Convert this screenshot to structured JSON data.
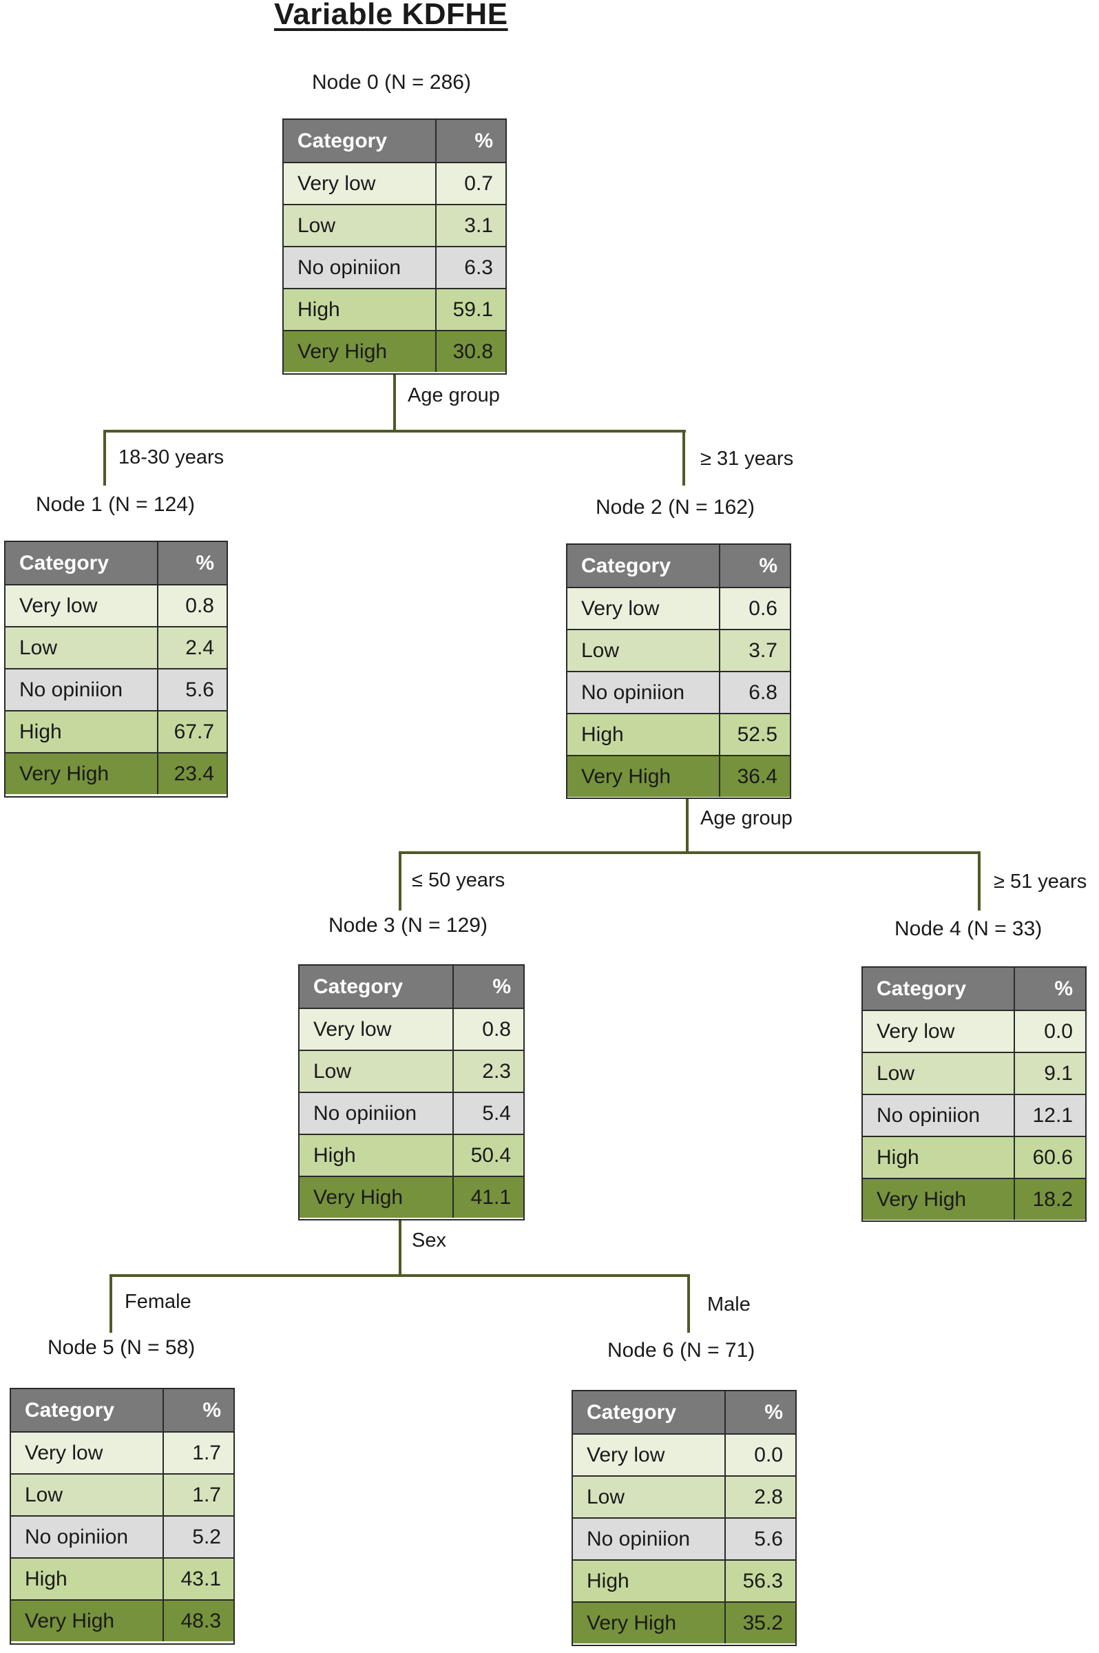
{
  "title": "Variable KDFHE",
  "colors": {
    "header": "#7a7a7a",
    "very_low": "#ebf0dd",
    "low": "#d6e2bc",
    "no_opinion": "#dcdcdc",
    "high": "#c5d99e",
    "very_high": "#76923c",
    "connector": "#4f5a28"
  },
  "table_header": {
    "category": "Category",
    "percent": "%"
  },
  "categories": [
    "Very low",
    "Low",
    "No opiniion",
    "High",
    "Very High"
  ],
  "nodes": [
    {
      "label": "Node 0 (N = 286)",
      "values": [
        "0.7",
        "3.1",
        "6.3",
        "59.1",
        "30.8"
      ]
    },
    {
      "label": "Node 1 (N = 124)",
      "values": [
        "0.8",
        "2.4",
        "5.6",
        "67.7",
        "23.4"
      ]
    },
    {
      "label": "Node 2 (N = 162)",
      "values": [
        "0.6",
        "3.7",
        "6.8",
        "52.5",
        "36.4"
      ]
    },
    {
      "label": "Node 3 (N = 129)",
      "values": [
        "0.8",
        "2.3",
        "5.4",
        "50.4",
        "41.1"
      ]
    },
    {
      "label": "Node 4 (N = 33)",
      "values": [
        "0.0",
        "9.1",
        "12.1",
        "60.6",
        "18.2"
      ]
    },
    {
      "label": "Node 5 (N = 58)",
      "values": [
        "1.7",
        "1.7",
        "5.2",
        "43.1",
        "48.3"
      ]
    },
    {
      "label": "Node 6 (N = 71)",
      "values": [
        "0.0",
        "2.8",
        "5.6",
        "56.3",
        "35.2"
      ]
    }
  ],
  "splits": [
    {
      "variable": "Age group",
      "left": "18-30 years",
      "right": "≥ 31 years"
    },
    {
      "variable": "Age group",
      "left": "≤ 50 years",
      "right": "≥ 51 years"
    },
    {
      "variable": "Sex",
      "left": "Female",
      "right": "Male"
    }
  ],
  "chart_data": {
    "type": "table",
    "title": "Variable KDFHE",
    "tree": [
      {
        "node": 0,
        "n": 286,
        "parent": null,
        "split_var": "Age group",
        "values": {
          "Very low": 0.7,
          "Low": 3.1,
          "No opinion": 6.3,
          "High": 59.1,
          "Very High": 30.8
        }
      },
      {
        "node": 1,
        "n": 124,
        "parent": 0,
        "condition": "18-30 years",
        "values": {
          "Very low": 0.8,
          "Low": 2.4,
          "No opinion": 5.6,
          "High": 67.7,
          "Very High": 23.4
        }
      },
      {
        "node": 2,
        "n": 162,
        "parent": 0,
        "condition": "≥ 31 years",
        "split_var": "Age group",
        "values": {
          "Very low": 0.6,
          "Low": 3.7,
          "No opinion": 6.8,
          "High": 52.5,
          "Very High": 36.4
        }
      },
      {
        "node": 3,
        "n": 129,
        "parent": 2,
        "condition": "≤ 50 years",
        "split_var": "Sex",
        "values": {
          "Very low": 0.8,
          "Low": 2.3,
          "No opinion": 5.4,
          "High": 50.4,
          "Very High": 41.1
        }
      },
      {
        "node": 4,
        "n": 33,
        "parent": 2,
        "condition": "≥ 51 years",
        "values": {
          "Very low": 0.0,
          "Low": 9.1,
          "No opinion": 12.1,
          "High": 60.6,
          "Very High": 18.2
        }
      },
      {
        "node": 5,
        "n": 58,
        "parent": 3,
        "condition": "Female",
        "values": {
          "Very low": 1.7,
          "Low": 1.7,
          "No opinion": 5.2,
          "High": 43.1,
          "Very High": 48.3
        }
      },
      {
        "node": 6,
        "n": 71,
        "parent": 3,
        "condition": "Male",
        "values": {
          "Very low": 0.0,
          "Low": 2.8,
          "No opinion": 5.6,
          "High": 56.3,
          "Very High": 35.2
        }
      }
    ]
  }
}
